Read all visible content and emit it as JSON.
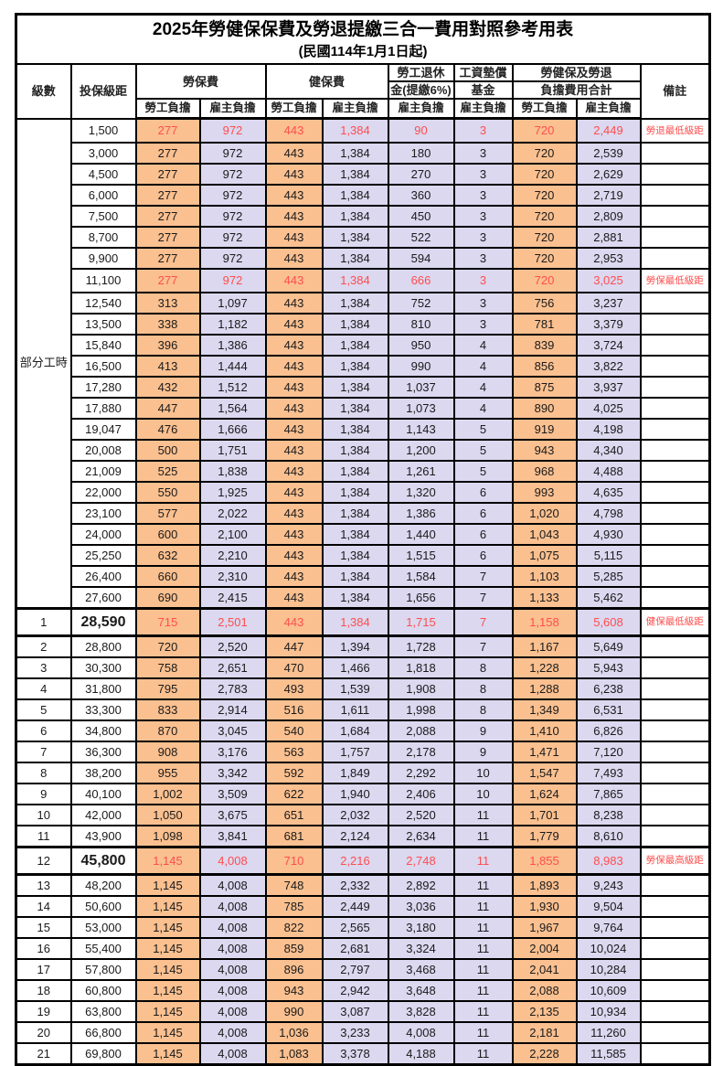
{
  "title": "2025年勞健保保費及勞退提繳三合一費用對照參考用表",
  "subtitle": "(民國114年1月1日起)",
  "colors": {
    "employee_bg": "#FAC090",
    "employer_bg": "#DBD8F0",
    "highlight_red": "#FF4D4D",
    "border": "#000000"
  },
  "header": {
    "level": "級數",
    "bracket": "投保級距",
    "labor": "勞保費",
    "health": "健保費",
    "pension_l1": "勞工退休",
    "pension_l2": "金(提繳6%)",
    "fund_l1": "工資墊償",
    "fund_l2": "基金",
    "total_l1": "勞健保及勞退",
    "total_l2": "負擔費用合計",
    "note": "備註",
    "employee": "勞工負擔",
    "employer": "雇主負擔"
  },
  "part_time_label": "部分工時",
  "part_time_rowspan": 23,
  "rows": [
    {
      "level": "",
      "bracket": "1,500",
      "values": [
        "277",
        "972",
        "443",
        "1,384",
        "90",
        "3",
        "720",
        "2,449"
      ],
      "note": "勞退最低級距",
      "style": "hl"
    },
    {
      "level": "",
      "bracket": "3,000",
      "values": [
        "277",
        "972",
        "443",
        "1,384",
        "180",
        "3",
        "720",
        "2,539"
      ],
      "note": "",
      "style": ""
    },
    {
      "level": "",
      "bracket": "4,500",
      "values": [
        "277",
        "972",
        "443",
        "1,384",
        "270",
        "3",
        "720",
        "2,629"
      ],
      "note": "",
      "style": ""
    },
    {
      "level": "",
      "bracket": "6,000",
      "values": [
        "277",
        "972",
        "443",
        "1,384",
        "360",
        "3",
        "720",
        "2,719"
      ],
      "note": "",
      "style": ""
    },
    {
      "level": "",
      "bracket": "7,500",
      "values": [
        "277",
        "972",
        "443",
        "1,384",
        "450",
        "3",
        "720",
        "2,809"
      ],
      "note": "",
      "style": ""
    },
    {
      "level": "",
      "bracket": "8,700",
      "values": [
        "277",
        "972",
        "443",
        "1,384",
        "522",
        "3",
        "720",
        "2,881"
      ],
      "note": "",
      "style": ""
    },
    {
      "level": "",
      "bracket": "9,900",
      "values": [
        "277",
        "972",
        "443",
        "1,384",
        "594",
        "3",
        "720",
        "2,953"
      ],
      "note": "",
      "style": ""
    },
    {
      "level": "",
      "bracket": "11,100",
      "values": [
        "277",
        "972",
        "443",
        "1,384",
        "666",
        "3",
        "720",
        "3,025"
      ],
      "note": "勞保最低級距",
      "style": "hl"
    },
    {
      "level": "",
      "bracket": "12,540",
      "values": [
        "313",
        "1,097",
        "443",
        "1,384",
        "752",
        "3",
        "756",
        "3,237"
      ],
      "note": "",
      "style": ""
    },
    {
      "level": "",
      "bracket": "13,500",
      "values": [
        "338",
        "1,182",
        "443",
        "1,384",
        "810",
        "3",
        "781",
        "3,379"
      ],
      "note": "",
      "style": ""
    },
    {
      "level": "",
      "bracket": "15,840",
      "values": [
        "396",
        "1,386",
        "443",
        "1,384",
        "950",
        "4",
        "839",
        "3,724"
      ],
      "note": "",
      "style": ""
    },
    {
      "level": "",
      "bracket": "16,500",
      "values": [
        "413",
        "1,444",
        "443",
        "1,384",
        "990",
        "4",
        "856",
        "3,822"
      ],
      "note": "",
      "style": ""
    },
    {
      "level": "",
      "bracket": "17,280",
      "values": [
        "432",
        "1,512",
        "443",
        "1,384",
        "1,037",
        "4",
        "875",
        "3,937"
      ],
      "note": "",
      "style": ""
    },
    {
      "level": "",
      "bracket": "17,880",
      "values": [
        "447",
        "1,564",
        "443",
        "1,384",
        "1,073",
        "4",
        "890",
        "4,025"
      ],
      "note": "",
      "style": ""
    },
    {
      "level": "",
      "bracket": "19,047",
      "values": [
        "476",
        "1,666",
        "443",
        "1,384",
        "1,143",
        "5",
        "919",
        "4,198"
      ],
      "note": "",
      "style": ""
    },
    {
      "level": "",
      "bracket": "20,008",
      "values": [
        "500",
        "1,751",
        "443",
        "1,384",
        "1,200",
        "5",
        "943",
        "4,340"
      ],
      "note": "",
      "style": ""
    },
    {
      "level": "",
      "bracket": "21,009",
      "values": [
        "525",
        "1,838",
        "443",
        "1,384",
        "1,261",
        "5",
        "968",
        "4,488"
      ],
      "note": "",
      "style": ""
    },
    {
      "level": "",
      "bracket": "22,000",
      "values": [
        "550",
        "1,925",
        "443",
        "1,384",
        "1,320",
        "6",
        "993",
        "4,635"
      ],
      "note": "",
      "style": ""
    },
    {
      "level": "",
      "bracket": "23,100",
      "values": [
        "577",
        "2,022",
        "443",
        "1,384",
        "1,386",
        "6",
        "1,020",
        "4,798"
      ],
      "note": "",
      "style": ""
    },
    {
      "level": "",
      "bracket": "24,000",
      "values": [
        "600",
        "2,100",
        "443",
        "1,384",
        "1,440",
        "6",
        "1,043",
        "4,930"
      ],
      "note": "",
      "style": ""
    },
    {
      "level": "",
      "bracket": "25,250",
      "values": [
        "632",
        "2,210",
        "443",
        "1,384",
        "1,515",
        "6",
        "1,075",
        "5,115"
      ],
      "note": "",
      "style": ""
    },
    {
      "level": "",
      "bracket": "26,400",
      "values": [
        "660",
        "2,310",
        "443",
        "1,384",
        "1,584",
        "7",
        "1,103",
        "5,285"
      ],
      "note": "",
      "style": ""
    },
    {
      "level": "",
      "bracket": "27,600",
      "values": [
        "690",
        "2,415",
        "443",
        "1,384",
        "1,656",
        "7",
        "1,133",
        "5,462"
      ],
      "note": "",
      "style": ""
    },
    {
      "level": "1",
      "bracket": "28,590",
      "values": [
        "715",
        "2,501",
        "443",
        "1,384",
        "1,715",
        "7",
        "1,158",
        "5,608"
      ],
      "note": "健保最低級距",
      "style": "hl big"
    },
    {
      "level": "2",
      "bracket": "28,800",
      "values": [
        "720",
        "2,520",
        "447",
        "1,394",
        "1,728",
        "7",
        "1,167",
        "5,649"
      ],
      "note": "",
      "style": ""
    },
    {
      "level": "3",
      "bracket": "30,300",
      "values": [
        "758",
        "2,651",
        "470",
        "1,466",
        "1,818",
        "8",
        "1,228",
        "5,943"
      ],
      "note": "",
      "style": ""
    },
    {
      "level": "4",
      "bracket": "31,800",
      "values": [
        "795",
        "2,783",
        "493",
        "1,539",
        "1,908",
        "8",
        "1,288",
        "6,238"
      ],
      "note": "",
      "style": ""
    },
    {
      "level": "5",
      "bracket": "33,300",
      "values": [
        "833",
        "2,914",
        "516",
        "1,611",
        "1,998",
        "8",
        "1,349",
        "6,531"
      ],
      "note": "",
      "style": ""
    },
    {
      "level": "6",
      "bracket": "34,800",
      "values": [
        "870",
        "3,045",
        "540",
        "1,684",
        "2,088",
        "9",
        "1,410",
        "6,826"
      ],
      "note": "",
      "style": ""
    },
    {
      "level": "7",
      "bracket": "36,300",
      "values": [
        "908",
        "3,176",
        "563",
        "1,757",
        "2,178",
        "9",
        "1,471",
        "7,120"
      ],
      "note": "",
      "style": ""
    },
    {
      "level": "8",
      "bracket": "38,200",
      "values": [
        "955",
        "3,342",
        "592",
        "1,849",
        "2,292",
        "10",
        "1,547",
        "7,493"
      ],
      "note": "",
      "style": ""
    },
    {
      "level": "9",
      "bracket": "40,100",
      "values": [
        "1,002",
        "3,509",
        "622",
        "1,940",
        "2,406",
        "10",
        "1,624",
        "7,865"
      ],
      "note": "",
      "style": ""
    },
    {
      "level": "10",
      "bracket": "42,000",
      "values": [
        "1,050",
        "3,675",
        "651",
        "2,032",
        "2,520",
        "11",
        "1,701",
        "8,238"
      ],
      "note": "",
      "style": ""
    },
    {
      "level": "11",
      "bracket": "43,900",
      "values": [
        "1,098",
        "3,841",
        "681",
        "2,124",
        "2,634",
        "11",
        "1,779",
        "8,610"
      ],
      "note": "",
      "style": ""
    },
    {
      "level": "12",
      "bracket": "45,800",
      "values": [
        "1,145",
        "4,008",
        "710",
        "2,216",
        "2,748",
        "11",
        "1,855",
        "8,983"
      ],
      "note": "勞保最高級距",
      "style": "hl big"
    },
    {
      "level": "13",
      "bracket": "48,200",
      "values": [
        "1,145",
        "4,008",
        "748",
        "2,332",
        "2,892",
        "11",
        "1,893",
        "9,243"
      ],
      "note": "",
      "style": ""
    },
    {
      "level": "14",
      "bracket": "50,600",
      "values": [
        "1,145",
        "4,008",
        "785",
        "2,449",
        "3,036",
        "11",
        "1,930",
        "9,504"
      ],
      "note": "",
      "style": ""
    },
    {
      "level": "15",
      "bracket": "53,000",
      "values": [
        "1,145",
        "4,008",
        "822",
        "2,565",
        "3,180",
        "11",
        "1,967",
        "9,764"
      ],
      "note": "",
      "style": ""
    },
    {
      "level": "16",
      "bracket": "55,400",
      "values": [
        "1,145",
        "4,008",
        "859",
        "2,681",
        "3,324",
        "11",
        "2,004",
        "10,024"
      ],
      "note": "",
      "style": ""
    },
    {
      "level": "17",
      "bracket": "57,800",
      "values": [
        "1,145",
        "4,008",
        "896",
        "2,797",
        "3,468",
        "11",
        "2,041",
        "10,284"
      ],
      "note": "",
      "style": ""
    },
    {
      "level": "18",
      "bracket": "60,800",
      "values": [
        "1,145",
        "4,008",
        "943",
        "2,942",
        "3,648",
        "11",
        "2,088",
        "10,609"
      ],
      "note": "",
      "style": ""
    },
    {
      "level": "19",
      "bracket": "63,800",
      "values": [
        "1,145",
        "4,008",
        "990",
        "3,087",
        "3,828",
        "11",
        "2,135",
        "10,934"
      ],
      "note": "",
      "style": ""
    },
    {
      "level": "20",
      "bracket": "66,800",
      "values": [
        "1,145",
        "4,008",
        "1,036",
        "3,233",
        "4,008",
        "11",
        "2,181",
        "11,260"
      ],
      "note": "",
      "style": ""
    },
    {
      "level": "21",
      "bracket": "69,800",
      "values": [
        "1,145",
        "4,008",
        "1,083",
        "3,378",
        "4,188",
        "11",
        "2,228",
        "11,585"
      ],
      "note": "",
      "style": ""
    }
  ]
}
